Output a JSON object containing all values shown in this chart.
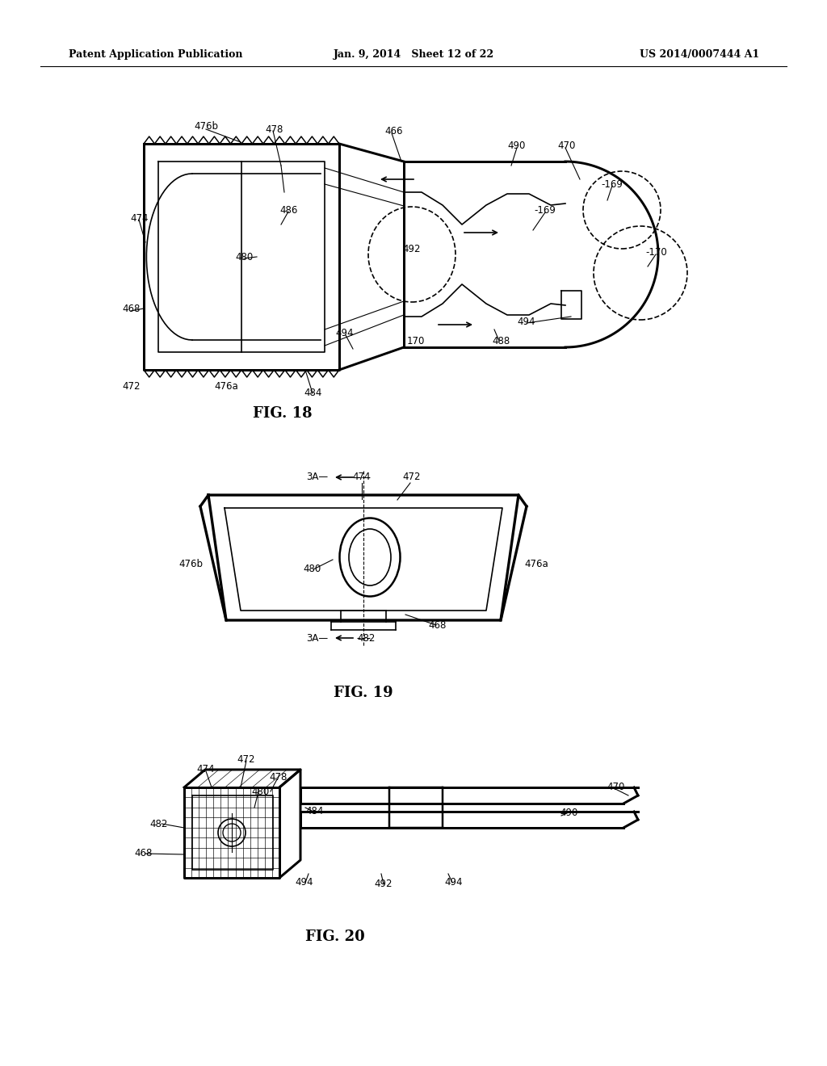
{
  "background_color": "#ffffff",
  "header_left": "Patent Application Publication",
  "header_center": "Jan. 9, 2014   Sheet 12 of 22",
  "header_right": "US 2014/0007444 A1",
  "fig18_caption": "FIG. 18",
  "fig19_caption": "FIG. 19",
  "fig20_caption": "FIG. 20",
  "line_color": "#000000",
  "line_width": 1.2,
  "font_size_label": 9,
  "font_size_caption": 13
}
